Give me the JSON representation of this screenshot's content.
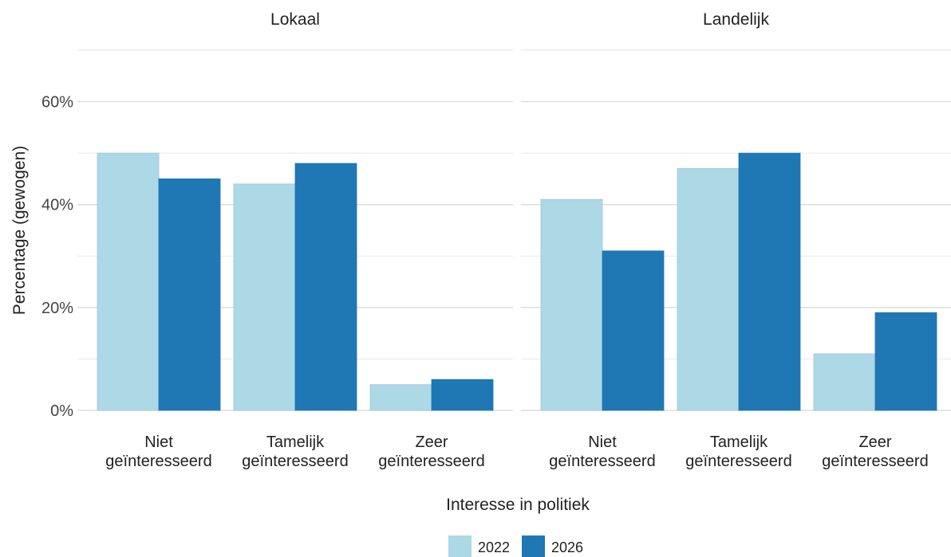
{
  "chart_data": {
    "type": "bar",
    "xlabel": "Interesse in politiek",
    "ylabel": "Percentage (gewogen)",
    "ylim": [
      0,
      70
    ],
    "yticks": [
      0,
      20,
      40,
      60
    ],
    "ytick_labels": [
      "0%",
      "20%",
      "40%",
      "60%"
    ],
    "grid": true,
    "legend": {
      "position": "bottom"
    },
    "categories": [
      [
        "Niet",
        "geïnteresseerd"
      ],
      [
        "Tamelijk",
        "geïnteresseerd"
      ],
      [
        "Zeer",
        "geïnteresseerd"
      ]
    ],
    "series_meta": [
      {
        "name": "2022",
        "color": "#add8e6"
      },
      {
        "name": "2026",
        "color": "#1f77b4"
      }
    ],
    "facets": [
      {
        "title": "Lokaal",
        "series": [
          {
            "name": "2022",
            "values": [
              50,
              44,
              5
            ]
          },
          {
            "name": "2026",
            "values": [
              45,
              48,
              6
            ]
          }
        ]
      },
      {
        "title": "Landelijk",
        "series": [
          {
            "name": "2022",
            "values": [
              41,
              47,
              11
            ]
          },
          {
            "name": "2026",
            "values": [
              31,
              50,
              19
            ]
          }
        ]
      }
    ]
  }
}
